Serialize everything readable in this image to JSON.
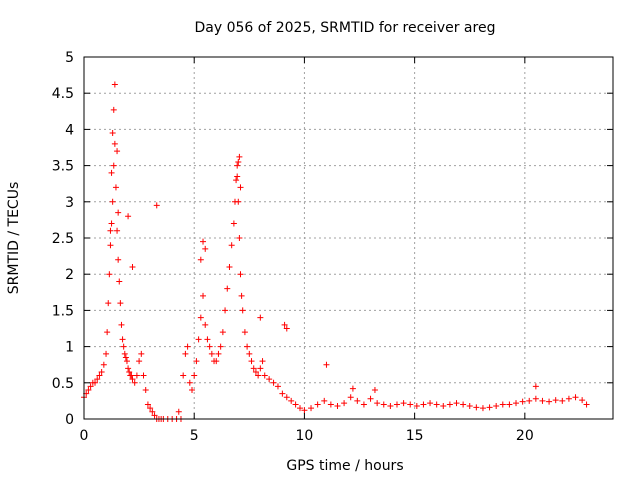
{
  "chart_data": {
    "type": "scatter",
    "title": "Day 056 of 2025, SRMTID for receiver areg",
    "xlabel": "GPS time / hours",
    "ylabel": "SRMTID / TECUs",
    "xlim": [
      0,
      24
    ],
    "ylim": [
      0,
      5
    ],
    "xticks": [
      0,
      5,
      10,
      15,
      20
    ],
    "xtick_labels": [
      "0",
      "5",
      "10",
      "15",
      "20"
    ],
    "yticks": [
      0,
      0.5,
      1,
      1.5,
      2,
      2.5,
      3,
      3.5,
      4,
      4.5,
      5
    ],
    "ytick_labels": [
      "0",
      "0.5",
      "1",
      "1.5",
      "2",
      "2.5",
      "3",
      "3.5",
      "4",
      "4.5",
      "5"
    ],
    "grid": true,
    "marker": "+",
    "series": [
      {
        "name": "areg",
        "color": "#ff0000",
        "x": [
          0.0,
          0.1,
          0.2,
          0.3,
          0.4,
          0.5,
          0.6,
          0.7,
          0.8,
          0.9,
          1.0,
          1.05,
          1.1,
          1.15,
          1.2,
          1.25,
          1.3,
          1.35,
          1.4,
          1.45,
          1.5,
          1.55,
          1.6,
          1.65,
          1.7,
          1.75,
          1.8,
          1.85,
          1.9,
          1.95,
          2.0,
          2.05,
          2.1,
          2.15,
          2.2,
          2.3,
          2.4,
          2.5,
          2.6,
          2.7,
          2.8,
          2.9,
          3.0,
          3.1,
          3.2,
          3.3,
          3.4,
          3.5,
          3.6,
          3.8,
          4.0,
          4.2,
          4.4,
          4.5,
          4.6,
          4.7,
          4.8,
          4.9,
          5.0,
          5.1,
          5.2,
          5.3,
          5.4,
          5.5,
          5.6,
          5.7,
          5.8,
          5.9,
          6.0,
          6.1,
          6.2,
          6.3,
          6.4,
          6.5,
          6.6,
          6.7,
          6.8,
          6.85,
          6.9,
          6.95,
          7.0,
          7.05,
          7.1,
          7.15,
          7.2,
          7.3,
          7.4,
          7.5,
          7.6,
          7.7,
          7.8,
          7.9,
          8.0,
          8.1,
          8.2,
          8.4,
          8.6,
          8.8,
          9.0,
          9.2,
          9.4,
          9.6,
          9.8,
          10.0,
          10.3,
          10.6,
          10.9,
          11.2,
          11.5,
          11.8,
          12.1,
          12.4,
          12.7,
          13.0,
          13.3,
          13.6,
          13.9,
          14.2,
          14.5,
          14.8,
          15.1,
          15.4,
          15.7,
          16.0,
          16.3,
          16.6,
          16.9,
          17.2,
          17.5,
          17.8,
          18.1,
          18.4,
          18.7,
          19.0,
          19.3,
          19.6,
          19.9,
          20.2,
          20.5,
          20.8,
          21.1,
          21.4,
          21.7,
          22.0,
          22.3,
          22.6,
          22.8,
          1.4,
          1.3,
          1.35,
          1.25,
          1.5,
          1.2,
          1.55,
          2.0,
          2.2,
          3.3,
          4.3,
          7.05,
          7.0,
          6.95,
          7.1,
          5.4,
          5.5,
          5.3,
          8.0,
          9.1,
          9.2,
          11.0,
          20.5,
          12.2,
          13.2
        ],
        "y": [
          0.3,
          0.35,
          0.4,
          0.45,
          0.5,
          0.5,
          0.55,
          0.6,
          0.65,
          0.75,
          0.9,
          1.2,
          1.6,
          2.0,
          2.4,
          2.7,
          3.0,
          3.5,
          3.8,
          3.2,
          2.6,
          2.2,
          1.9,
          1.6,
          1.3,
          1.1,
          1.0,
          0.9,
          0.85,
          0.8,
          0.7,
          0.65,
          0.6,
          0.6,
          0.55,
          0.5,
          0.6,
          0.8,
          0.9,
          0.6,
          0.4,
          0.2,
          0.15,
          0.1,
          0.05,
          0.0,
          0.0,
          0.0,
          0.0,
          0.0,
          0.0,
          0.0,
          0.0,
          0.6,
          0.9,
          1.0,
          0.5,
          0.4,
          0.6,
          0.8,
          1.1,
          1.4,
          1.7,
          1.3,
          1.1,
          1.0,
          0.9,
          0.8,
          0.8,
          0.9,
          1.0,
          1.2,
          1.5,
          1.8,
          2.1,
          2.4,
          2.7,
          3.0,
          3.3,
          3.5,
          3.0,
          2.5,
          2.0,
          1.7,
          1.5,
          1.2,
          1.0,
          0.9,
          0.8,
          0.7,
          0.65,
          0.6,
          0.7,
          0.8,
          0.6,
          0.55,
          0.5,
          0.45,
          0.35,
          0.3,
          0.25,
          0.2,
          0.15,
          0.12,
          0.15,
          0.2,
          0.25,
          0.2,
          0.18,
          0.22,
          0.3,
          0.25,
          0.2,
          0.28,
          0.22,
          0.2,
          0.18,
          0.2,
          0.22,
          0.2,
          0.18,
          0.2,
          0.22,
          0.2,
          0.18,
          0.2,
          0.22,
          0.2,
          0.18,
          0.16,
          0.15,
          0.16,
          0.18,
          0.2,
          0.2,
          0.22,
          0.24,
          0.25,
          0.28,
          0.25,
          0.24,
          0.26,
          0.25,
          0.28,
          0.3,
          0.26,
          0.2,
          4.62,
          3.95,
          4.27,
          3.4,
          3.7,
          2.6,
          2.85,
          2.8,
          2.1,
          2.95,
          0.1,
          3.62,
          3.55,
          3.35,
          3.2,
          2.45,
          2.35,
          2.2,
          1.4,
          1.3,
          1.25,
          0.75,
          0.45,
          0.42,
          0.4
        ]
      }
    ]
  }
}
